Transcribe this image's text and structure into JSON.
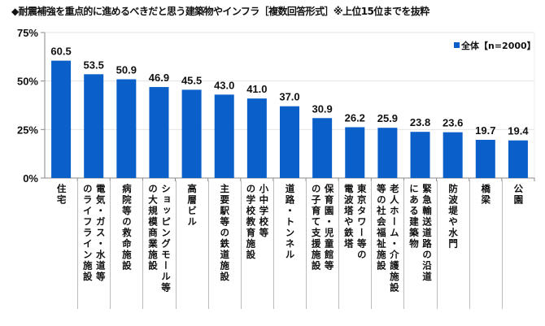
{
  "title": "◆耐震補強を重点的に進めるべきだと思う建築物やインフラ［複数回答形式］※上位15位までを抜粋",
  "chart_data": {
    "type": "bar",
    "title": "耐震補強を重点的に進めるべきだと思う建築物やインフラ［複数回答形式］※上位15位までを抜粋",
    "xlabel": "",
    "ylabel": "",
    "ylim": [
      0,
      75
    ],
    "yticks": [
      0,
      25,
      50,
      75
    ],
    "ytick_labels": [
      "0%",
      "25%",
      "50%",
      "75%"
    ],
    "grid": true,
    "legend_position": "top-right",
    "categories": [
      "住宅",
      "電気・ガス・水道等のライフライン施設",
      "病院等の救命施設",
      "ショッピングモール等の大規模商業施設",
      "高層ビル",
      "主要駅等の鉄道施設",
      "小中学校等の学校教育施設",
      "道路・トンネル",
      "保育園・児童館等の子育て支援施設",
      "東京タワー等の電波塔や鉄塔",
      "老人ホーム・介護施設等の社会福祉施設",
      "緊急輸送道路の沿道にある建築物",
      "防波堤や水門",
      "橋梁",
      "公園"
    ],
    "category_label_columns": [
      [
        "住宅"
      ],
      [
        "電気・ガス・水道等",
        "のライフライン施設"
      ],
      [
        "病院等の救命施設"
      ],
      [
        "ショッピングモール等",
        "の大規模商業施設"
      ],
      [
        "高層ビル"
      ],
      [
        "主要駅等の鉄道施設"
      ],
      [
        "小中学校等",
        "の学校教育施設"
      ],
      [
        "道路・トンネル"
      ],
      [
        "保育園・児童館等",
        "の子育て支援施設"
      ],
      [
        "東京タワー等の",
        "電波塔や鉄塔"
      ],
      [
        "老人ホーム・介護施設",
        "等の社会福祉施設"
      ],
      [
        "緊急輸送道路の沿道",
        "にある建築物"
      ],
      [
        "防波堤や水門"
      ],
      [
        "橋梁"
      ],
      [
        "公園"
      ]
    ],
    "series": [
      {
        "name": "全体【n=2000】",
        "color": "#0a5fc8",
        "values": [
          60.5,
          53.5,
          50.9,
          46.9,
          45.5,
          43.0,
          41.0,
          37.0,
          30.9,
          26.2,
          25.9,
          23.8,
          23.6,
          19.7,
          19.4
        ],
        "value_labels": [
          "60.5",
          "53.5",
          "50.9",
          "46.9",
          "45.5",
          "43.0",
          "41.0",
          "37.0",
          "30.9",
          "26.2",
          "25.9",
          "23.8",
          "23.6",
          "19.7",
          "19.4"
        ]
      }
    ]
  }
}
